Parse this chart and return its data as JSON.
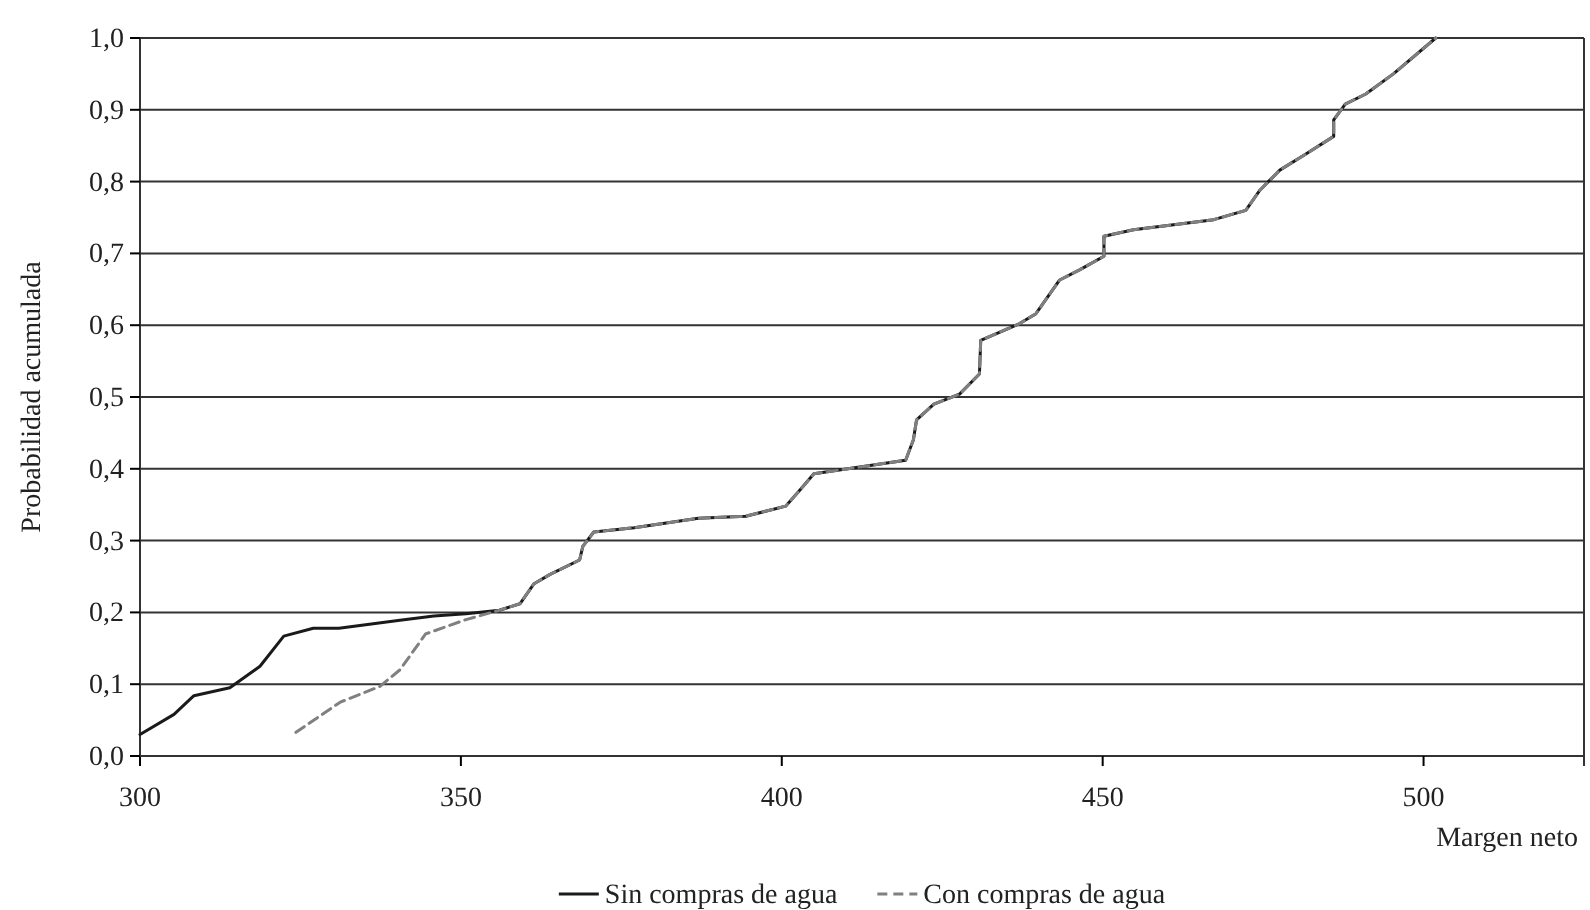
{
  "chart_data": {
    "type": "line",
    "xlabel": "Margen neto",
    "ylabel": "Probabilidad acumulada",
    "xlim": [
      300,
      525
    ],
    "xticks": [
      300,
      350,
      400,
      450,
      500
    ],
    "ylim": [
      0,
      1
    ],
    "yticks": [
      {
        "value": 0,
        "label": "0,0"
      },
      {
        "value": 0.1,
        "label": "0,1"
      },
      {
        "value": 0.2,
        "label": "0,2"
      },
      {
        "value": 0.3,
        "label": "0,3"
      },
      {
        "value": 0.4,
        "label": "0,4"
      },
      {
        "value": 0.5,
        "label": "0,5"
      },
      {
        "value": 0.6,
        "label": "0,6"
      },
      {
        "value": 0.7,
        "label": "0,7"
      },
      {
        "value": 0.8,
        "label": "0,8"
      },
      {
        "value": 0.9,
        "label": "0,9"
      },
      {
        "value": 1,
        "label": "1,0"
      }
    ],
    "grid": "y",
    "legend": "bottom",
    "marker": "none",
    "series": [
      {
        "name": "Sin compras de agua",
        "color": "#1a1a1a",
        "line_style": "solid",
        "x": [
          300,
          305.3,
          308.4,
          314,
          318.7,
          322.4,
          327,
          331,
          340.5,
          345.8,
          350.8,
          356,
          359.2,
          361.4,
          363.9,
          368.5,
          369,
          370.7,
          377,
          387,
          394.4,
          400.6,
          402.8,
          405,
          419.3,
          420.5,
          421,
          423.7,
          427.7,
          430.8,
          431,
          437,
          439.6,
          443.3,
          446.4,
          450.2,
          450.2,
          454.8,
          467.3,
          472.3,
          474.5,
          477.6,
          481.6,
          486,
          486,
          487.8,
          491,
          495.3,
          501.9
        ],
        "values": [
          0.03,
          0.058,
          0.084,
          0.095,
          0.125,
          0.167,
          0.178,
          0.178,
          0.189,
          0.195,
          0.198,
          0.203,
          0.212,
          0.24,
          0.253,
          0.273,
          0.292,
          0.312,
          0.318,
          0.331,
          0.334,
          0.348,
          0.37,
          0.393,
          0.412,
          0.44,
          0.468,
          0.49,
          0.504,
          0.532,
          0.579,
          0.602,
          0.616,
          0.663,
          0.677,
          0.696,
          0.724,
          0.733,
          0.747,
          0.76,
          0.788,
          0.816,
          0.838,
          0.863,
          0.886,
          0.908,
          0.922,
          0.95,
          1
        ]
      },
      {
        "name": "Con compras de agua",
        "color": "#808080",
        "line_style": "dashed",
        "x": [
          324.3,
          331.2,
          337.4,
          340.5,
          344.5,
          350.8,
          356,
          359.2,
          361.4,
          363.9,
          368.5,
          369,
          370.7,
          377,
          387,
          394.4,
          400.6,
          402.8,
          405,
          419.3,
          420.5,
          421,
          423.7,
          427.7,
          430.8,
          431,
          437,
          439.6,
          443.3,
          446.4,
          450.2,
          450.2,
          454.8,
          467.3,
          472.3,
          474.5,
          477.6,
          481.6,
          486,
          486,
          487.8,
          491,
          495.3,
          501.9
        ],
        "values": [
          0.033,
          0.075,
          0.097,
          0.12,
          0.17,
          0.19,
          0.203,
          0.212,
          0.24,
          0.253,
          0.273,
          0.292,
          0.312,
          0.318,
          0.331,
          0.334,
          0.348,
          0.37,
          0.393,
          0.412,
          0.44,
          0.468,
          0.49,
          0.504,
          0.532,
          0.579,
          0.602,
          0.616,
          0.663,
          0.677,
          0.696,
          0.724,
          0.733,
          0.747,
          0.76,
          0.788,
          0.816,
          0.838,
          0.863,
          0.886,
          0.908,
          0.922,
          0.95,
          1
        ]
      }
    ]
  }
}
